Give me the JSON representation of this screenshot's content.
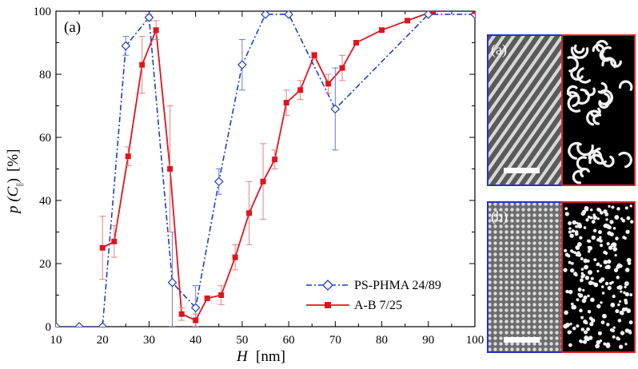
{
  "chart_data": {
    "type": "line",
    "panel_label": "(a)",
    "xlabel": "H",
    "xunit": "[nm]",
    "ylabel_prefix": "p (C",
    "ylabel_sub": "||",
    "ylabel_suffix": ")",
    "yunit": "[%]",
    "xlim": [
      10,
      100
    ],
    "ylim": [
      0,
      100
    ],
    "xticks": [
      10,
      20,
      30,
      40,
      50,
      60,
      70,
      80,
      90,
      100
    ],
    "yticks": [
      0,
      20,
      40,
      60,
      80,
      100
    ],
    "legend_position": "bottom-right",
    "series": [
      {
        "name": "PS-PHMA 24/89",
        "color": "#1f3fbf",
        "style": "dashed",
        "marker": "open-diamond",
        "points": [
          {
            "x": 10,
            "y": 0
          },
          {
            "x": 15,
            "y": 0
          },
          {
            "x": 20,
            "y": 0
          },
          {
            "x": 25,
            "y": 89,
            "err": 3
          },
          {
            "x": 30,
            "y": 98,
            "err": 1
          },
          {
            "x": 35,
            "y": 14,
            "err": 16
          },
          {
            "x": 40,
            "y": 6,
            "err": 7
          },
          {
            "x": 45,
            "y": 46,
            "err": 4
          },
          {
            "x": 50,
            "y": 83,
            "err": 8
          },
          {
            "x": 55,
            "y": 99
          },
          {
            "x": 60,
            "y": 99
          },
          {
            "x": 70,
            "y": 69,
            "err": 13
          },
          {
            "x": 90,
            "y": 99
          },
          {
            "x": 100,
            "y": 99
          }
        ]
      },
      {
        "name": "A-B 7/25",
        "color": "#e0141e",
        "style": "solid",
        "marker": "filled-square",
        "points": [
          {
            "x": 20,
            "y": 25,
            "err": 10
          },
          {
            "x": 22.5,
            "y": 27,
            "err": 5
          },
          {
            "x": 25.5,
            "y": 54,
            "err": 3
          },
          {
            "x": 28.5,
            "y": 83,
            "err": 9
          },
          {
            "x": 31.5,
            "y": 94,
            "err": 3
          },
          {
            "x": 34.5,
            "y": 50,
            "err": 20
          },
          {
            "x": 37,
            "y": 4,
            "err": 2
          },
          {
            "x": 40,
            "y": 2,
            "err": 2
          },
          {
            "x": 42.5,
            "y": 9
          },
          {
            "x": 45.5,
            "y": 10,
            "err": 3
          },
          {
            "x": 48.5,
            "y": 22,
            "err": 4
          },
          {
            "x": 51.5,
            "y": 36,
            "err": 10
          },
          {
            "x": 54.5,
            "y": 46,
            "err": 12
          },
          {
            "x": 57,
            "y": 53,
            "err": 3
          },
          {
            "x": 59.5,
            "y": 71,
            "err": 4
          },
          {
            "x": 62.5,
            "y": 75,
            "err": 3
          },
          {
            "x": 65.5,
            "y": 86,
            "err": 1
          },
          {
            "x": 68.5,
            "y": 77,
            "err": 3
          },
          {
            "x": 71.5,
            "y": 82,
            "err": 4
          },
          {
            "x": 74.5,
            "y": 90
          },
          {
            "x": 80,
            "y": 94
          },
          {
            "x": 85.5,
            "y": 97
          },
          {
            "x": 91,
            "y": 100
          },
          {
            "x": 100,
            "y": 100
          }
        ]
      }
    ]
  },
  "micrographs": [
    {
      "label": "(a)",
      "frame_left_color": "#2233cc",
      "frame_right_color": "#dd2222",
      "pattern": "stripes"
    },
    {
      "label": "(b)",
      "frame_left_color": "#2233cc",
      "frame_right_color": "#dd2222",
      "pattern": "dots"
    }
  ]
}
